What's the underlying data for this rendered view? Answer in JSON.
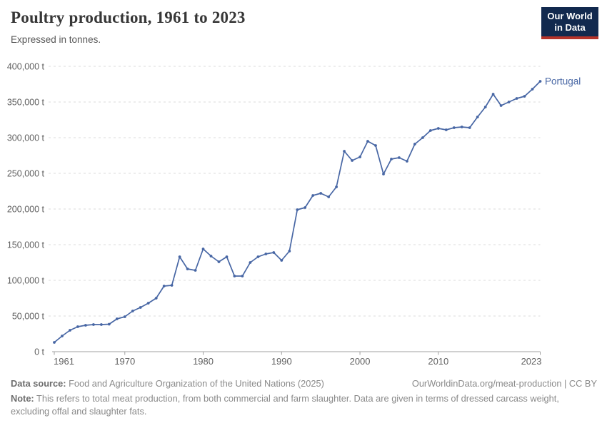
{
  "header": {
    "title": "Poultry production, 1961 to 2023",
    "subtitle": "Expressed in tonnes.",
    "logo_line1": "Our World",
    "logo_line2": "in Data"
  },
  "colors": {
    "line": "#4766A4",
    "grid": "#DBDBDB",
    "axis": "#A0A0A0",
    "tick_text": "#616161",
    "logo_bg": "#12294E",
    "logo_red": "#B5332A"
  },
  "chart_data": {
    "type": "line",
    "title": "Poultry production, 1961 to 2023",
    "subtitle": "Expressed in tonnes.",
    "xlabel": "",
    "ylabel": "tonnes",
    "unit_suffix": " t",
    "xlim": [
      1961,
      2023
    ],
    "ylim": [
      0,
      400000
    ],
    "x_ticks": [
      1961,
      1970,
      1980,
      1990,
      2000,
      2010,
      2023
    ],
    "y_ticks": [
      0,
      50000,
      100000,
      150000,
      200000,
      250000,
      300000,
      350000,
      400000
    ],
    "grid": "horizontal-dashed",
    "legend_position": "end-of-line",
    "series": [
      {
        "name": "Portugal",
        "color": "#4766A4",
        "x": [
          1961,
          1962,
          1963,
          1964,
          1965,
          1966,
          1967,
          1968,
          1969,
          1970,
          1971,
          1972,
          1973,
          1974,
          1975,
          1976,
          1977,
          1978,
          1979,
          1980,
          1981,
          1982,
          1983,
          1984,
          1985,
          1986,
          1987,
          1988,
          1989,
          1990,
          1991,
          1992,
          1993,
          1994,
          1995,
          1996,
          1997,
          1998,
          1999,
          2000,
          2001,
          2002,
          2003,
          2004,
          2005,
          2006,
          2007,
          2008,
          2009,
          2010,
          2011,
          2012,
          2013,
          2014,
          2015,
          2016,
          2017,
          2018,
          2019,
          2020,
          2021,
          2022,
          2023
        ],
        "values": [
          13000,
          22000,
          30000,
          35000,
          37000,
          38000,
          38000,
          38500,
          46000,
          49000,
          57000,
          62000,
          68000,
          75000,
          92000,
          93000,
          133000,
          116000,
          114000,
          144000,
          134000,
          126000,
          133000,
          106000,
          106000,
          125000,
          133000,
          137000,
          139000,
          128000,
          141000,
          199000,
          202000,
          219000,
          222000,
          217000,
          231000,
          281000,
          268000,
          273000,
          295000,
          289000,
          249000,
          270000,
          272000,
          267000,
          291000,
          300000,
          310000,
          313000,
          311000,
          314000,
          315000,
          314000,
          329000,
          343000,
          361000,
          345000,
          350000,
          355000,
          358000,
          368000,
          379000
        ]
      }
    ]
  },
  "footer": {
    "source_label": "Data source:",
    "source_text": " Food and Agriculture Organization of the United Nations (2025)",
    "link_text": "OurWorldinData.org/meat-production | CC BY",
    "note_label": "Note:",
    "note_text": " This refers to total meat production, from both commercial and farm slaughter. Data are given in terms of dressed carcass weight, excluding offal and slaughter fats."
  }
}
